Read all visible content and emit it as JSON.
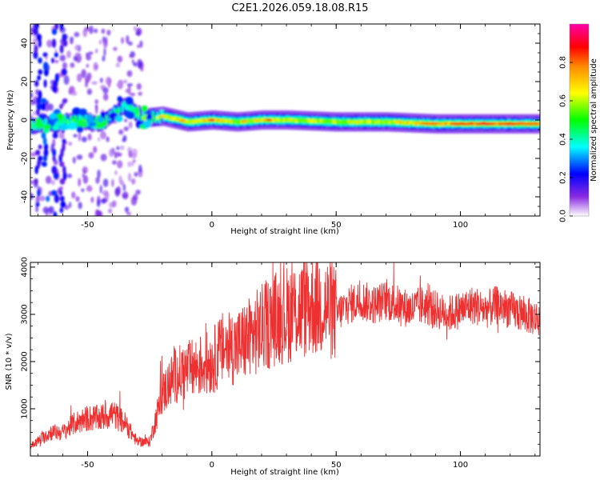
{
  "title": "C2E1.2026.059.18.08.R15",
  "chart_data": [
    {
      "type": "heatmap",
      "name": "spectrogram",
      "xlabel": "Height of straight line (km)",
      "ylabel": "Frequency (Hz)",
      "xlim": [
        -73,
        132
      ],
      "ylim": [
        -50,
        50
      ],
      "xticks": [
        -50,
        0,
        50,
        100
      ],
      "yticks": [
        -40,
        -20,
        0,
        20,
        40
      ],
      "colorbar": {
        "label": "Normalized spectral amplitude",
        "range": [
          0,
          1
        ],
        "ticks": [
          "0.0",
          "0.2",
          "0.4",
          "0.6",
          "0.8"
        ],
        "stops": [
          "#ffffff",
          "#8a2be2",
          "#0000ff",
          "#00ffff",
          "#00ff00",
          "#ffff00",
          "#ff8800",
          "#ff0000",
          "#ff00aa"
        ]
      },
      "ridge": {
        "x": [
          -73,
          -65,
          -55,
          -45,
          -35,
          -28,
          -20,
          -10,
          0,
          10,
          20,
          30,
          50,
          70,
          90,
          110,
          132
        ],
        "center_hz": [
          -3,
          -2,
          0,
          -2,
          8,
          1,
          2,
          -1,
          0,
          -1,
          0,
          0,
          -1,
          -1,
          -2,
          -2,
          -2
        ],
        "amplitude": [
          0.45,
          0.35,
          0.5,
          0.45,
          0.4,
          0.55,
          0.6,
          0.65,
          0.7,
          0.6,
          0.65,
          0.6,
          0.6,
          0.62,
          0.7,
          0.8,
          0.75
        ]
      }
    },
    {
      "type": "line",
      "name": "snr",
      "xlabel": "Height of straight line (km)",
      "ylabel": "SNR (10 * v/v)",
      "xlim": [
        -73,
        132
      ],
      "ylim": [
        0,
        4100
      ],
      "xticks": [
        -50,
        0,
        50,
        100
      ],
      "yticks": [
        1000,
        2000,
        3000,
        4000
      ],
      "color": "#ee3030",
      "series": [
        {
          "name": "SNR",
          "x": [
            -73,
            -65,
            -60,
            -55,
            -50,
            -45,
            -40,
            -35,
            -30,
            -25,
            -20,
            -15,
            -10,
            -5,
            0,
            5,
            10,
            15,
            20,
            25,
            30,
            35,
            40,
            45,
            50,
            55,
            60,
            65,
            70,
            75,
            80,
            85,
            90,
            95,
            100,
            105,
            110,
            115,
            120,
            125,
            132
          ],
          "values": [
            200,
            500,
            500,
            700,
            800,
            800,
            900,
            700,
            300,
            300,
            1300,
            1700,
            1800,
            1900,
            2000,
            2300,
            2300,
            2500,
            2700,
            2900,
            3000,
            3100,
            3200,
            3200,
            3000,
            3200,
            3300,
            3200,
            3300,
            3200,
            3100,
            3200,
            3100,
            3000,
            3100,
            3200,
            3100,
            3200,
            3100,
            3000,
            2900
          ]
        }
      ]
    }
  ]
}
